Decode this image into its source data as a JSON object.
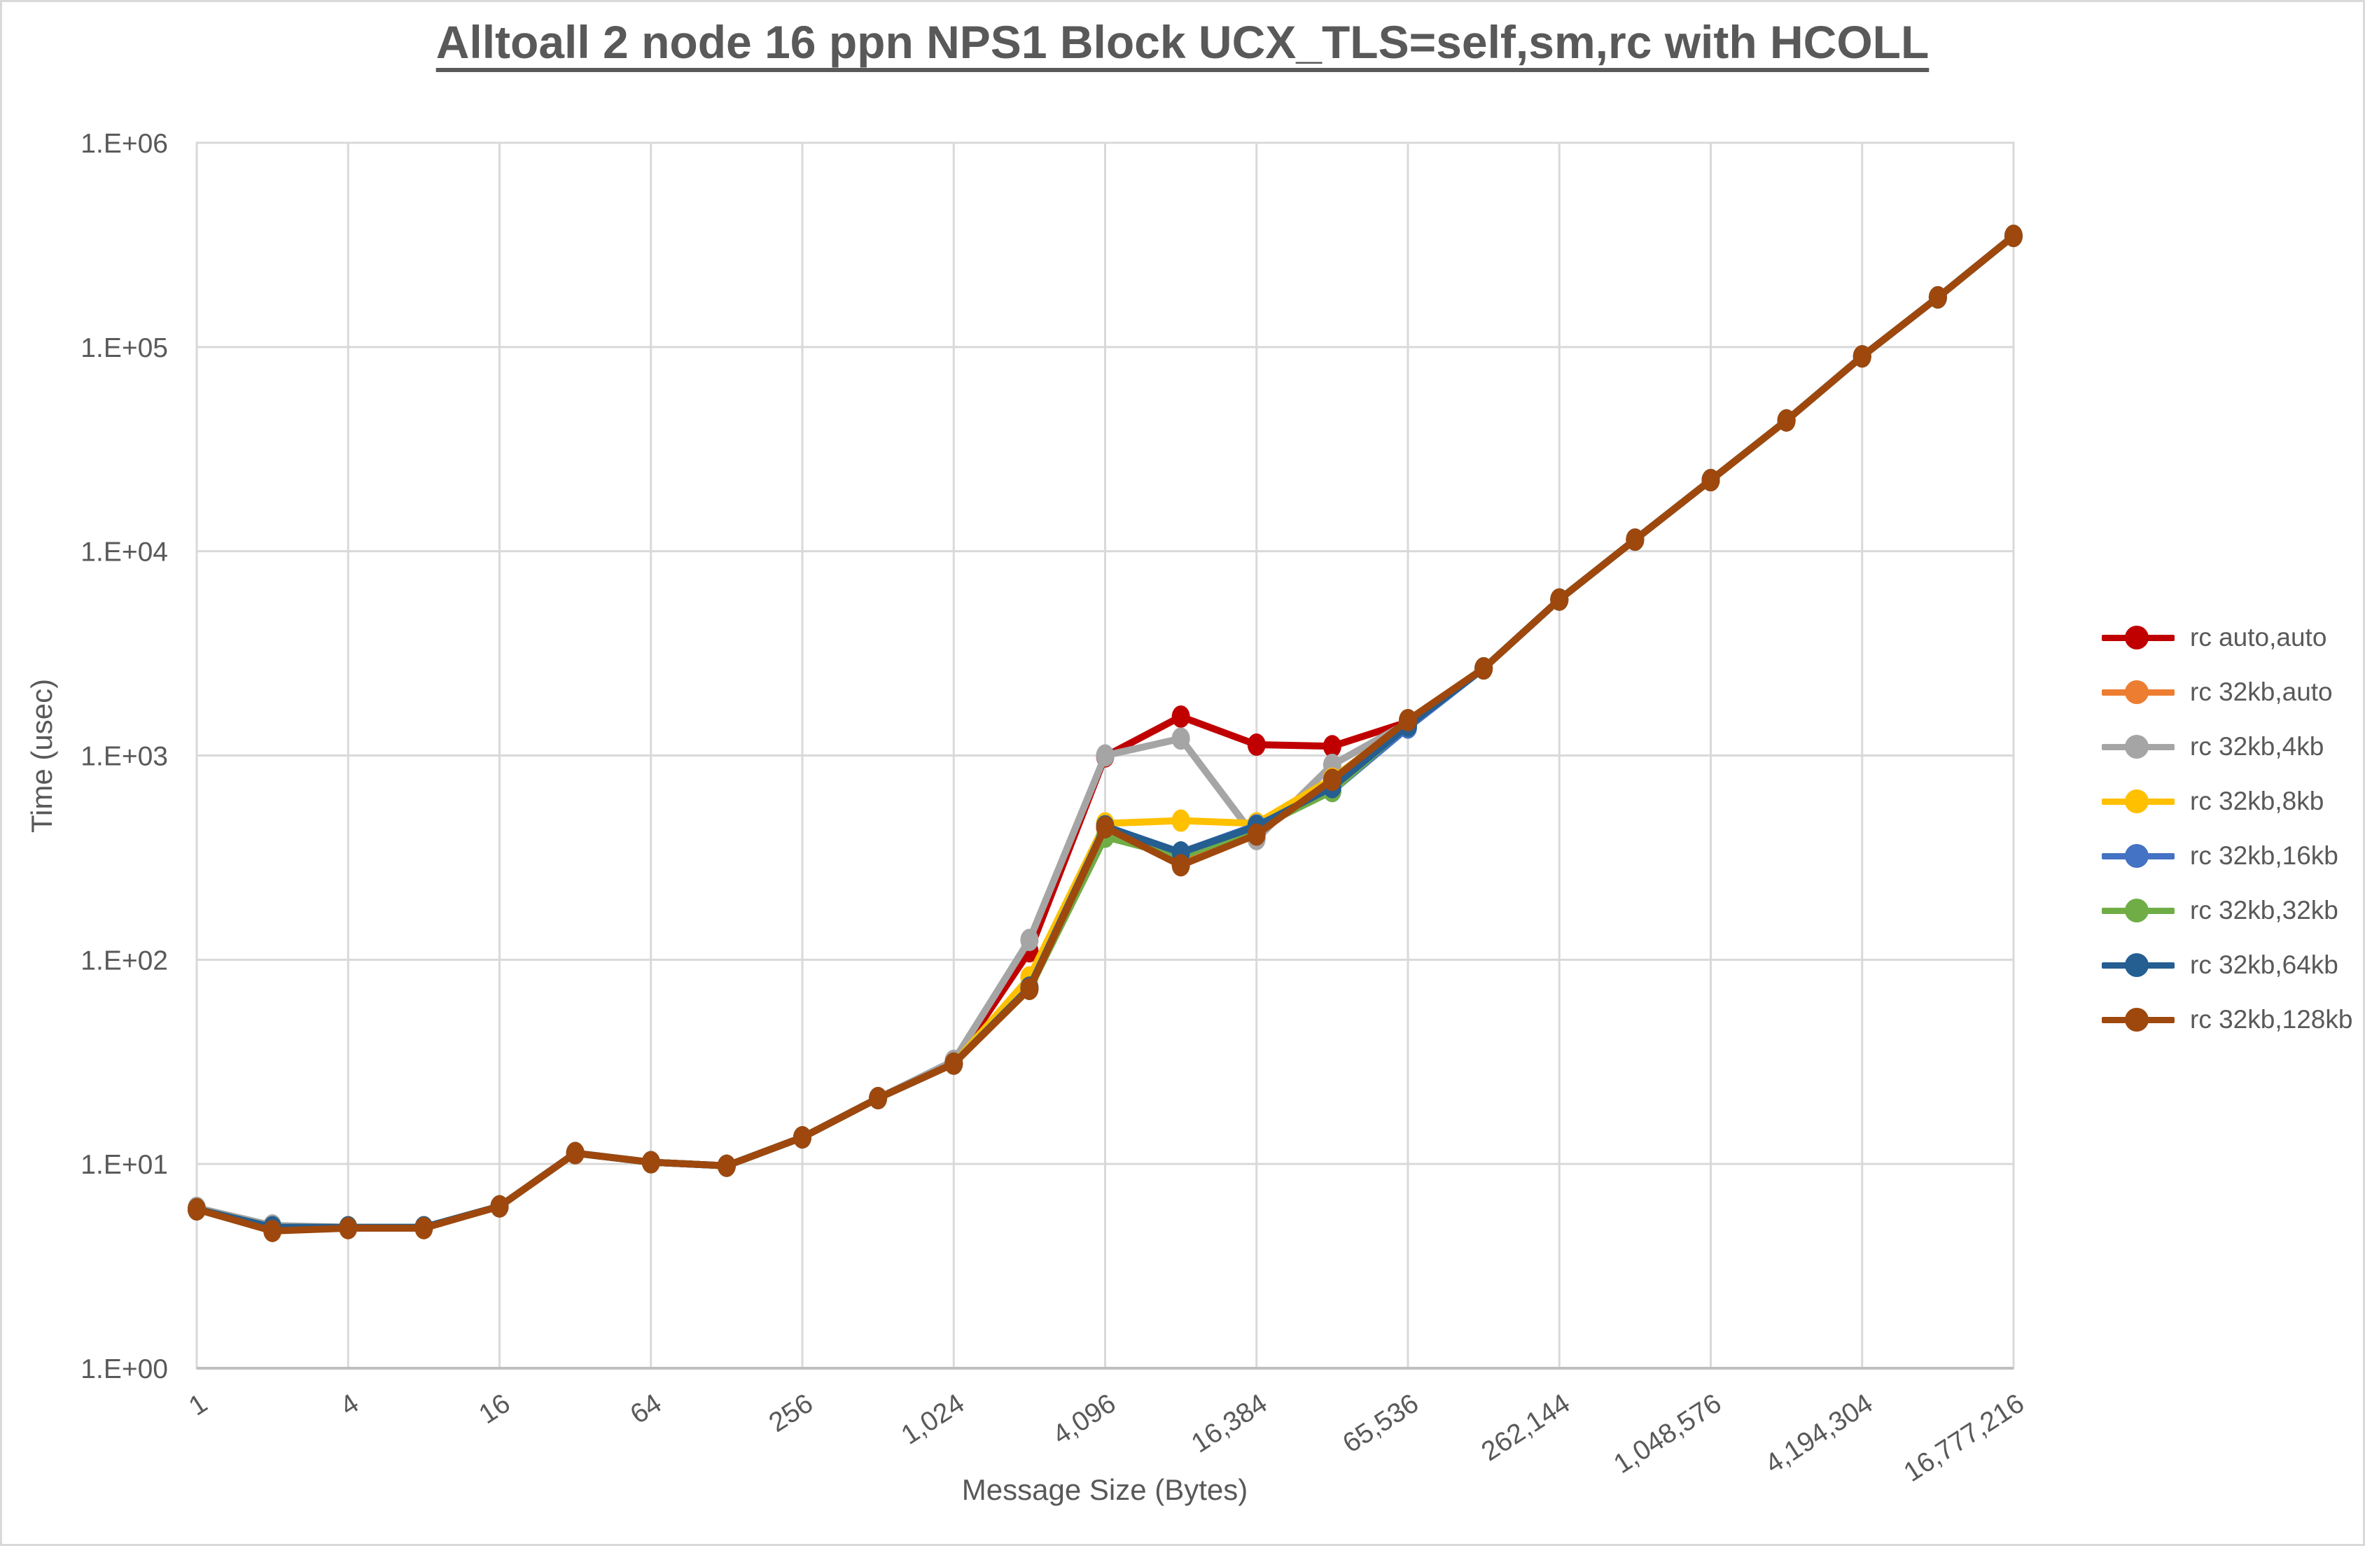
{
  "title": "Alltoall 2 node 16 ppn NPS1 Block UCX_TLS=self,sm,rc with HCOLL",
  "y_axis": {
    "title": "Time (usec)",
    "tick_labels": [
      "1.E+00",
      "1.E+01",
      "1.E+02",
      "1.E+03",
      "1.E+04",
      "1.E+05",
      "1.E+06"
    ],
    "min_exponent": 0,
    "max_exponent": 6
  },
  "x_axis": {
    "title": "Message Size (Bytes)",
    "tick_labels": [
      "1",
      "4",
      "16",
      "64",
      "256",
      "1,024",
      "4,096",
      "16,384",
      "65,536",
      "262,144",
      "1,048,576",
      "4,194,304",
      "16,777,216"
    ]
  },
  "colors": {
    "text": "#595959",
    "gridline": "#d9d9d9",
    "axis_line": "#bfbfbf"
  },
  "chart_data": {
    "type": "line",
    "x_scale": "log2-categories",
    "y_scale": "log10",
    "title": "Alltoall 2 node 16 ppn NPS1 Block UCX_TLS=self,sm,rc with HCOLL",
    "xlabel": "Message Size (Bytes)",
    "ylabel": "Time (usec)",
    "ylim": [
      1,
      1000000
    ],
    "grid": true,
    "legend_position": "right",
    "categories": [
      1,
      2,
      4,
      8,
      16,
      32,
      64,
      128,
      256,
      512,
      1024,
      2048,
      4096,
      8192,
      16384,
      32768,
      65536,
      131072,
      262144,
      524288,
      1048576,
      2097152,
      4194304,
      8388608,
      16777216
    ],
    "series": [
      {
        "name": "rc auto,auto",
        "color": "#c00000",
        "values": [
          6.0,
          4.9,
          4.9,
          4.9,
          6.2,
          11.3,
          10.2,
          9.8,
          13.5,
          21,
          31,
          110,
          990,
          1550,
          1130,
          1110,
          1460,
          2670,
          5800,
          11400,
          22300,
          43700,
          90000,
          175000,
          350000
        ]
      },
      {
        "name": "rc 32kb,auto",
        "color": "#ed7d31",
        "values": [
          6.0,
          4.9,
          4.9,
          4.9,
          6.2,
          11.3,
          10.2,
          9.8,
          13.5,
          21,
          31,
          72,
          450,
          295,
          415,
          760,
          1480,
          2670,
          5800,
          11400,
          22300,
          43700,
          90000,
          175000,
          350000
        ]
      },
      {
        "name": "rc 32kb,4kb",
        "color": "#a5a5a5",
        "values": [
          6.1,
          5.0,
          4.9,
          4.9,
          6.2,
          11.3,
          10.2,
          9.8,
          13.5,
          21,
          32,
          125,
          1000,
          1210,
          390,
          900,
          1450,
          2670,
          5800,
          11400,
          22300,
          43700,
          90000,
          175000,
          350000
        ]
      },
      {
        "name": "rc 32kb,8kb",
        "color": "#ffc000",
        "values": [
          6.0,
          4.9,
          4.9,
          4.9,
          6.2,
          11.3,
          10.2,
          9.8,
          13.5,
          21,
          31,
          82,
          465,
          480,
          465,
          770,
          1470,
          2670,
          5800,
          11400,
          22300,
          43700,
          90000,
          175000,
          350000
        ]
      },
      {
        "name": "rc 32kb,16kb",
        "color": "#4472c4",
        "values": [
          6.0,
          4.9,
          4.9,
          4.9,
          6.2,
          11.3,
          10.2,
          9.8,
          13.5,
          21,
          31,
          73,
          450,
          335,
          455,
          670,
          1370,
          2670,
          5800,
          11400,
          22300,
          43700,
          90000,
          175000,
          350000
        ]
      },
      {
        "name": "rc 32kb,32kb",
        "color": "#70ad47",
        "values": [
          6.0,
          4.9,
          4.9,
          4.9,
          6.2,
          11.3,
          10.2,
          9.8,
          13.5,
          21,
          31,
          72,
          400,
          320,
          440,
          670,
          1420,
          2670,
          5800,
          11400,
          22300,
          43700,
          90000,
          175000,
          350000
        ]
      },
      {
        "name": "rc 32kb,64kb",
        "color": "#255e91",
        "values": [
          6.0,
          4.9,
          4.9,
          4.9,
          6.2,
          11.3,
          10.2,
          9.8,
          13.5,
          21,
          31,
          73,
          450,
          335,
          450,
          700,
          1400,
          2670,
          5800,
          11400,
          22300,
          43700,
          90000,
          175000,
          350000
        ]
      },
      {
        "name": "rc 32kb,128kb",
        "color": "#9e480e",
        "values": [
          6.0,
          4.7,
          4.85,
          4.85,
          6.2,
          11.3,
          10.2,
          9.8,
          13.5,
          21,
          31,
          72,
          445,
          290,
          410,
          760,
          1490,
          2670,
          5800,
          11400,
          22300,
          43700,
          90000,
          175000,
          350000
        ]
      }
    ]
  }
}
